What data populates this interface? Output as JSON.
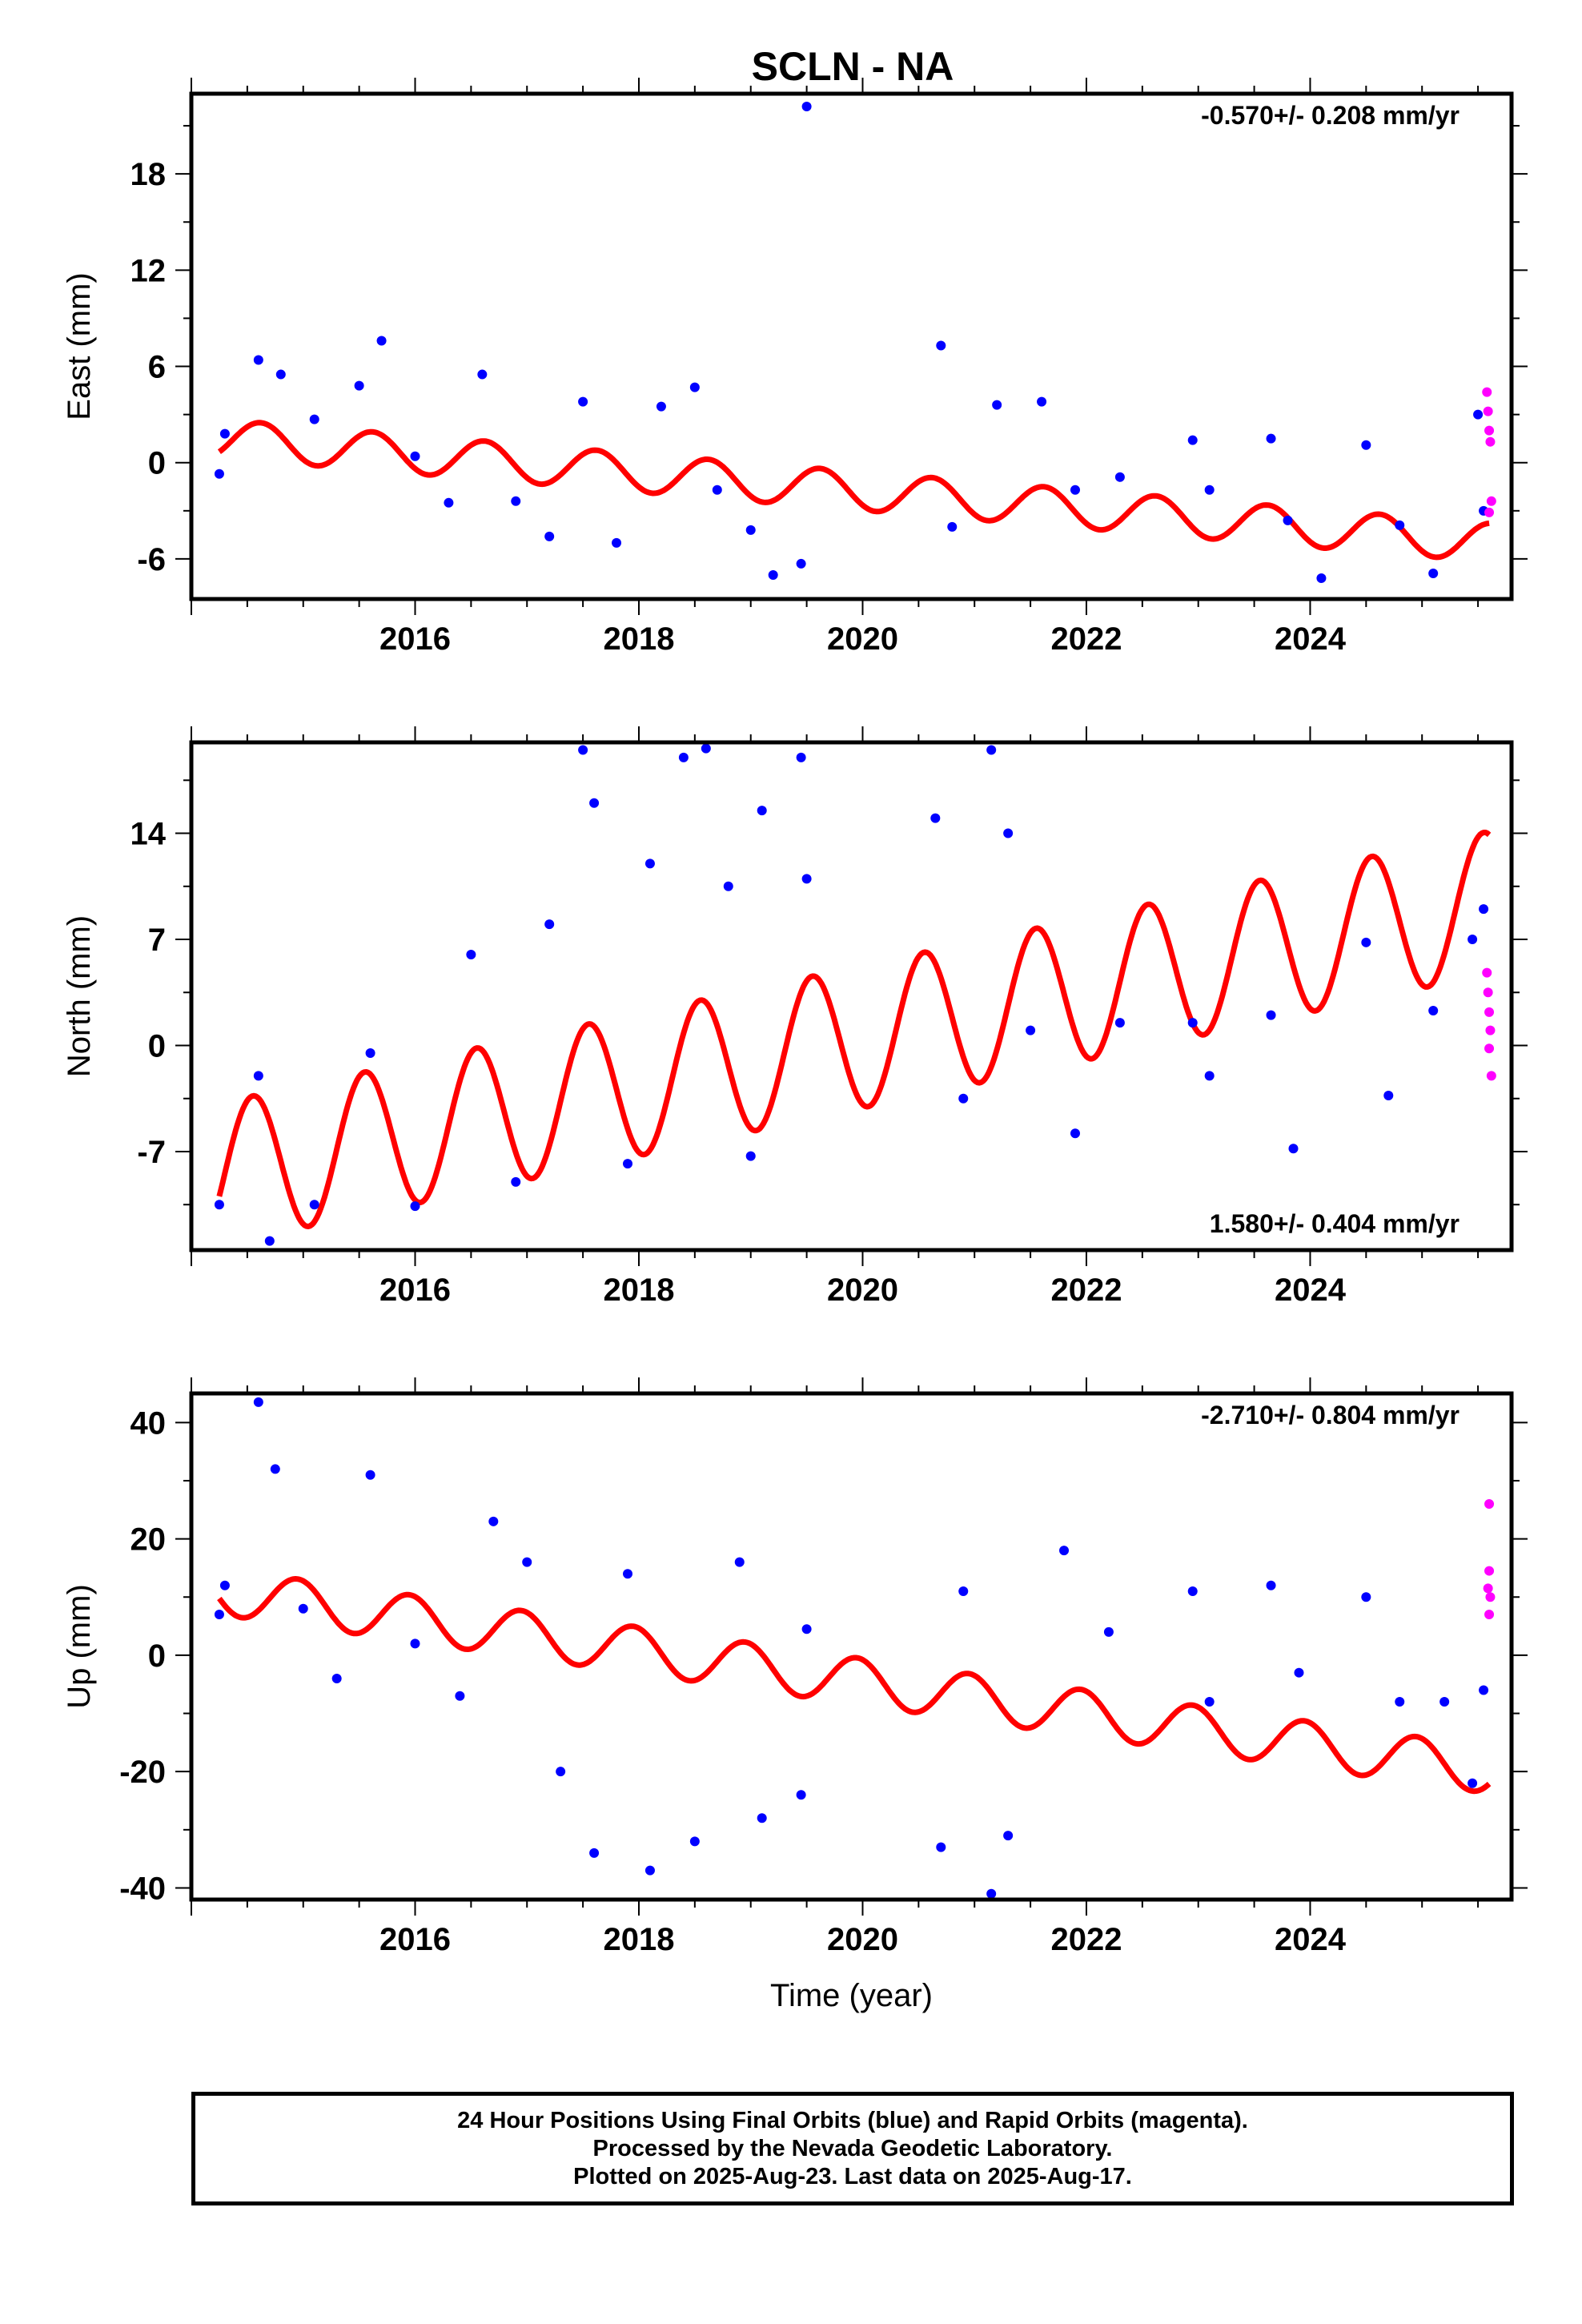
{
  "page_title": "SCLN - NA",
  "colors": {
    "final": "#0000ff",
    "rapid": "#ff00ff",
    "fit": "#ff0000",
    "frame": "#000000"
  },
  "footer": {
    "line1": "24 Hour Positions Using Final Orbits (blue) and Rapid Orbits (magenta).",
    "line2": "Processed by the Nevada Geodetic Laboratory.",
    "line3": "Plotted on 2025-Aug-23. Last data on 2025-Aug-17."
  },
  "chart_data": [
    {
      "type": "scatter",
      "title": "SCLN - NA",
      "ylabel": "East (mm)",
      "xlabel": "",
      "xlim": [
        2014.0,
        2025.8
      ],
      "ylim": [
        -8.5,
        23
      ],
      "xticks": [
        2016,
        2018,
        2020,
        2022,
        2024
      ],
      "yticks": [
        -6,
        0,
        6,
        12,
        18
      ],
      "grid": false,
      "rate": "-0.570+/- 0.208 mm/yr",
      "rate_position": "top-right",
      "series": [
        {
          "name": "final",
          "points": [
            [
              2014.25,
              -0.7
            ],
            [
              2014.3,
              1.8
            ],
            [
              2014.6,
              6.4
            ],
            [
              2014.8,
              5.5
            ],
            [
              2015.1,
              2.7
            ],
            [
              2015.5,
              4.8
            ],
            [
              2015.7,
              7.6
            ],
            [
              2016.0,
              0.4
            ],
            [
              2016.3,
              -2.5
            ],
            [
              2016.6,
              5.5
            ],
            [
              2016.9,
              -2.4
            ],
            [
              2017.2,
              -4.6
            ],
            [
              2017.5,
              3.8
            ],
            [
              2017.8,
              -5.0
            ],
            [
              2018.2,
              3.5
            ],
            [
              2018.5,
              4.7
            ],
            [
              2018.7,
              -1.7
            ],
            [
              2019.0,
              -4.2
            ],
            [
              2019.2,
              -7.0
            ],
            [
              2019.45,
              -6.3
            ],
            [
              2019.5,
              22.2
            ],
            [
              2020.7,
              7.3
            ],
            [
              2020.8,
              -4.0
            ],
            [
              2021.2,
              3.6
            ],
            [
              2021.6,
              3.8
            ],
            [
              2021.9,
              -1.7
            ],
            [
              2022.3,
              -0.9
            ],
            [
              2022.95,
              1.4
            ],
            [
              2023.1,
              -1.7
            ],
            [
              2023.65,
              1.5
            ],
            [
              2023.8,
              -3.6
            ],
            [
              2024.1,
              -7.2
            ],
            [
              2024.5,
              1.1
            ],
            [
              2024.8,
              -3.9
            ],
            [
              2025.1,
              -6.9
            ],
            [
              2025.5,
              3.0
            ],
            [
              2025.55,
              -3.0
            ]
          ]
        },
        {
          "name": "rapid",
          "points": [
            [
              2025.58,
              4.4
            ],
            [
              2025.59,
              3.2
            ],
            [
              2025.6,
              2.0
            ],
            [
              2025.61,
              1.3
            ],
            [
              2025.62,
              -2.4
            ],
            [
              2025.6,
              -3.1
            ]
          ]
        }
      ],
      "model_fit": {
        "name": "fit",
        "intercept_2014": 1.5,
        "trend_mm_per_yr": -0.57,
        "annual_amp": 1.2,
        "annual_peak": 0.62
      }
    },
    {
      "type": "scatter",
      "title": "",
      "ylabel": "North (mm)",
      "xlabel": "",
      "xlim": [
        2014.0,
        2025.8
      ],
      "ylim": [
        -13.5,
        20
      ],
      "xticks": [
        2016,
        2018,
        2020,
        2022,
        2024
      ],
      "yticks": [
        -7,
        0,
        7,
        14
      ],
      "grid": false,
      "rate": "1.580+/- 0.404 mm/yr",
      "rate_position": "bottom-right",
      "series": [
        {
          "name": "final",
          "points": [
            [
              2014.25,
              -10.5
            ],
            [
              2014.6,
              -2.0
            ],
            [
              2014.7,
              -12.9
            ],
            [
              2015.1,
              -10.5
            ],
            [
              2015.6,
              -0.5
            ],
            [
              2016.0,
              -10.6
            ],
            [
              2016.5,
              6.0
            ],
            [
              2016.9,
              -9.0
            ],
            [
              2017.2,
              8.0
            ],
            [
              2017.5,
              19.5
            ],
            [
              2017.6,
              16.0
            ],
            [
              2017.9,
              -7.8
            ],
            [
              2018.1,
              12.0
            ],
            [
              2018.4,
              19.0
            ],
            [
              2018.6,
              19.6
            ],
            [
              2018.8,
              10.5
            ],
            [
              2019.0,
              -7.3
            ],
            [
              2019.1,
              15.5
            ],
            [
              2019.45,
              19.0
            ],
            [
              2019.5,
              11.0
            ],
            [
              2020.65,
              15.0
            ],
            [
              2020.9,
              -3.5
            ],
            [
              2021.15,
              19.5
            ],
            [
              2021.3,
              14.0
            ],
            [
              2021.5,
              1.0
            ],
            [
              2021.9,
              -5.8
            ],
            [
              2022.3,
              1.5
            ],
            [
              2022.95,
              1.5
            ],
            [
              2023.1,
              -2.0
            ],
            [
              2023.65,
              2.0
            ],
            [
              2023.85,
              -6.8
            ],
            [
              2024.5,
              6.8
            ],
            [
              2024.7,
              -3.3
            ],
            [
              2025.1,
              2.3
            ],
            [
              2025.45,
              7.0
            ],
            [
              2025.55,
              9.0
            ]
          ]
        },
        {
          "name": "rapid",
          "points": [
            [
              2025.58,
              4.8
            ],
            [
              2025.59,
              3.5
            ],
            [
              2025.6,
              2.2
            ],
            [
              2025.61,
              1.0
            ],
            [
              2025.6,
              -0.2
            ],
            [
              2025.62,
              -2.0
            ]
          ]
        }
      ],
      "model_fit": {
        "name": "fit",
        "intercept_2014": -8.5,
        "trend_mm_per_yr": 1.58,
        "annual_amp": 4.7,
        "annual_peak": 0.55
      }
    },
    {
      "type": "scatter",
      "title": "",
      "ylabel": "Up (mm)",
      "xlabel": "Time (year)",
      "xlim": [
        2014.0,
        2025.8
      ],
      "ylim": [
        -42,
        45
      ],
      "xticks": [
        2016,
        2018,
        2020,
        2022,
        2024
      ],
      "yticks": [
        -40,
        -20,
        0,
        20,
        40
      ],
      "grid": false,
      "rate": "-2.710+/- 0.804 mm/yr",
      "rate_position": "top-right",
      "series": [
        {
          "name": "final",
          "points": [
            [
              2014.25,
              7.0
            ],
            [
              2014.3,
              12.0
            ],
            [
              2014.6,
              43.5
            ],
            [
              2014.75,
              32.0
            ],
            [
              2015.0,
              8.0
            ],
            [
              2015.3,
              -4.0
            ],
            [
              2015.6,
              31.0
            ],
            [
              2016.0,
              2.0
            ],
            [
              2016.4,
              -7.0
            ],
            [
              2016.7,
              23.0
            ],
            [
              2017.0,
              16.0
            ],
            [
              2017.3,
              -20.0
            ],
            [
              2017.6,
              -34.0
            ],
            [
              2017.9,
              14.0
            ],
            [
              2018.1,
              -37.0
            ],
            [
              2018.5,
              -32.0
            ],
            [
              2018.9,
              16.0
            ],
            [
              2019.1,
              -28.0
            ],
            [
              2019.45,
              -24.0
            ],
            [
              2019.5,
              4.5
            ],
            [
              2020.7,
              -33.0
            ],
            [
              2020.9,
              11.0
            ],
            [
              2021.15,
              -41.0
            ],
            [
              2021.3,
              -31.0
            ],
            [
              2021.8,
              18.0
            ],
            [
              2022.2,
              4.0
            ],
            [
              2022.95,
              11.0
            ],
            [
              2023.1,
              -8.0
            ],
            [
              2023.65,
              12.0
            ],
            [
              2023.9,
              -3.0
            ],
            [
              2024.5,
              10.0
            ],
            [
              2024.8,
              -8.0
            ],
            [
              2025.2,
              -8.0
            ],
            [
              2025.45,
              -22.0
            ],
            [
              2025.55,
              -6.0
            ]
          ]
        },
        {
          "name": "rapid",
          "points": [
            [
              2025.6,
              26.0
            ],
            [
              2025.6,
              14.5
            ],
            [
              2025.59,
              11.5
            ],
            [
              2025.61,
              10.0
            ],
            [
              2025.6,
              7.0
            ]
          ]
        }
      ],
      "model_fit": {
        "name": "fit",
        "intercept_2014": 11.0,
        "trend_mm_per_yr": -2.71,
        "annual_amp": 4.0,
        "annual_peak": 0.95
      }
    }
  ]
}
